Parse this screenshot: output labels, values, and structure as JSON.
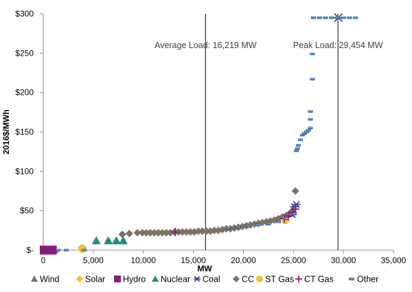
{
  "chart_data": {
    "type": "scatter",
    "title": "",
    "xlabel": "MW",
    "ylabel": "2016$/MWh",
    "xlim": [
      0,
      35000
    ],
    "ylim": [
      0,
      300
    ],
    "x_ticks": [
      0,
      5000,
      10000,
      15000,
      20000,
      25000,
      30000,
      35000
    ],
    "x_tick_labels": [
      "0",
      "5,000",
      "10,000",
      "15,000",
      "20,000",
      "25,000",
      "30,000",
      "35,000"
    ],
    "y_ticks": [
      0,
      50,
      100,
      150,
      200,
      250,
      300
    ],
    "y_tick_labels": [
      "$-",
      "$50",
      "$100",
      "$150",
      "$200",
      "$250",
      "$300"
    ],
    "grid": false,
    "legend_position": "bottom",
    "annotations": [
      {
        "text": "Average Load: 16,219 MW",
        "x": 16219
      },
      {
        "text": "Peak Load: 29,454 MW",
        "x": 29454
      }
    ],
    "series": [
      {
        "name": "Wind",
        "marker": "triangle",
        "color": "#7f7060",
        "points": [
          [
            700,
            0
          ],
          [
            1200,
            0
          ]
        ]
      },
      {
        "name": "Solar",
        "marker": "diamond",
        "color": "#f2c12e",
        "points": [
          [
            3800,
            0
          ]
        ]
      },
      {
        "name": "Hydro",
        "marker": "square",
        "color": "#8b1a7e",
        "points": [
          [
            100,
            0
          ],
          [
            500,
            0
          ],
          [
            900,
            0
          ]
        ]
      },
      {
        "name": "Nuclear",
        "marker": "triangle",
        "color": "#1f8a7e",
        "points": [
          [
            5300,
            12
          ],
          [
            6500,
            12
          ],
          [
            7300,
            12
          ],
          [
            8000,
            12
          ]
        ]
      },
      {
        "name": "Coal",
        "marker": "asterisk",
        "color": "#3a3a8c",
        "points": [
          [
            24900,
            45
          ],
          [
            25100,
            55
          ],
          [
            25300,
            58
          ],
          [
            29500,
            295
          ]
        ]
      },
      {
        "name": "CC",
        "marker": "diamond",
        "color": "#7f7060",
        "points": [
          [
            7900,
            20
          ],
          [
            8600,
            21
          ],
          [
            9400,
            22
          ],
          [
            9900,
            22
          ],
          [
            10300,
            22
          ],
          [
            10700,
            22
          ],
          [
            11100,
            22
          ],
          [
            11500,
            22
          ],
          [
            11900,
            22
          ],
          [
            12300,
            22
          ],
          [
            12700,
            22
          ],
          [
            13100,
            23
          ],
          [
            13500,
            23
          ],
          [
            13900,
            23
          ],
          [
            14300,
            23
          ],
          [
            14700,
            23
          ],
          [
            15100,
            23
          ],
          [
            15500,
            24
          ],
          [
            15900,
            24
          ],
          [
            16300,
            24
          ],
          [
            16700,
            24
          ],
          [
            17100,
            25
          ],
          [
            17500,
            25
          ],
          [
            17900,
            26
          ],
          [
            18300,
            27
          ],
          [
            18700,
            27
          ],
          [
            19100,
            28
          ],
          [
            19500,
            29
          ],
          [
            19900,
            30
          ],
          [
            20300,
            31
          ],
          [
            20700,
            32
          ],
          [
            21100,
            33
          ],
          [
            21500,
            34
          ],
          [
            21900,
            35
          ],
          [
            22300,
            36
          ],
          [
            22700,
            37
          ],
          [
            23100,
            38
          ],
          [
            23500,
            40
          ],
          [
            23900,
            42
          ],
          [
            24300,
            44
          ],
          [
            24600,
            46
          ],
          [
            24900,
            50
          ],
          [
            25200,
            75
          ]
        ]
      },
      {
        "name": "ST Gas",
        "marker": "circle",
        "color": "#f2c12e",
        "points": [
          [
            3900,
            2
          ],
          [
            24200,
            38
          ]
        ]
      },
      {
        "name": "CT Gas",
        "marker": "plus",
        "color": "#8b1a7e",
        "points": [
          [
            13200,
            23
          ],
          [
            24100,
            40
          ],
          [
            24500,
            43
          ],
          [
            24900,
            48
          ],
          [
            25200,
            52
          ]
        ]
      },
      {
        "name": "Other",
        "marker": "dash",
        "color": "#1f6fc2",
        "points": [
          [
            1500,
            0
          ],
          [
            2300,
            0
          ],
          [
            4100,
            0
          ],
          [
            18500,
            28
          ],
          [
            19500,
            29
          ],
          [
            20500,
            30
          ],
          [
            21500,
            32
          ],
          [
            22500,
            33
          ],
          [
            23500,
            36
          ],
          [
            24300,
            40
          ],
          [
            25100,
            46
          ],
          [
            25300,
            126
          ],
          [
            25400,
            129
          ],
          [
            25500,
            133
          ],
          [
            25700,
            140
          ],
          [
            25900,
            146
          ],
          [
            26100,
            148
          ],
          [
            26300,
            150
          ],
          [
            26500,
            152
          ],
          [
            26700,
            155
          ],
          [
            26700,
            166
          ],
          [
            26700,
            176
          ],
          [
            26900,
            217
          ],
          [
            26900,
            249
          ],
          [
            27000,
            295
          ],
          [
            27600,
            295
          ],
          [
            28200,
            295
          ],
          [
            28800,
            295
          ],
          [
            29400,
            295
          ],
          [
            30000,
            295
          ],
          [
            30600,
            295
          ],
          [
            31200,
            295
          ]
        ]
      }
    ]
  }
}
